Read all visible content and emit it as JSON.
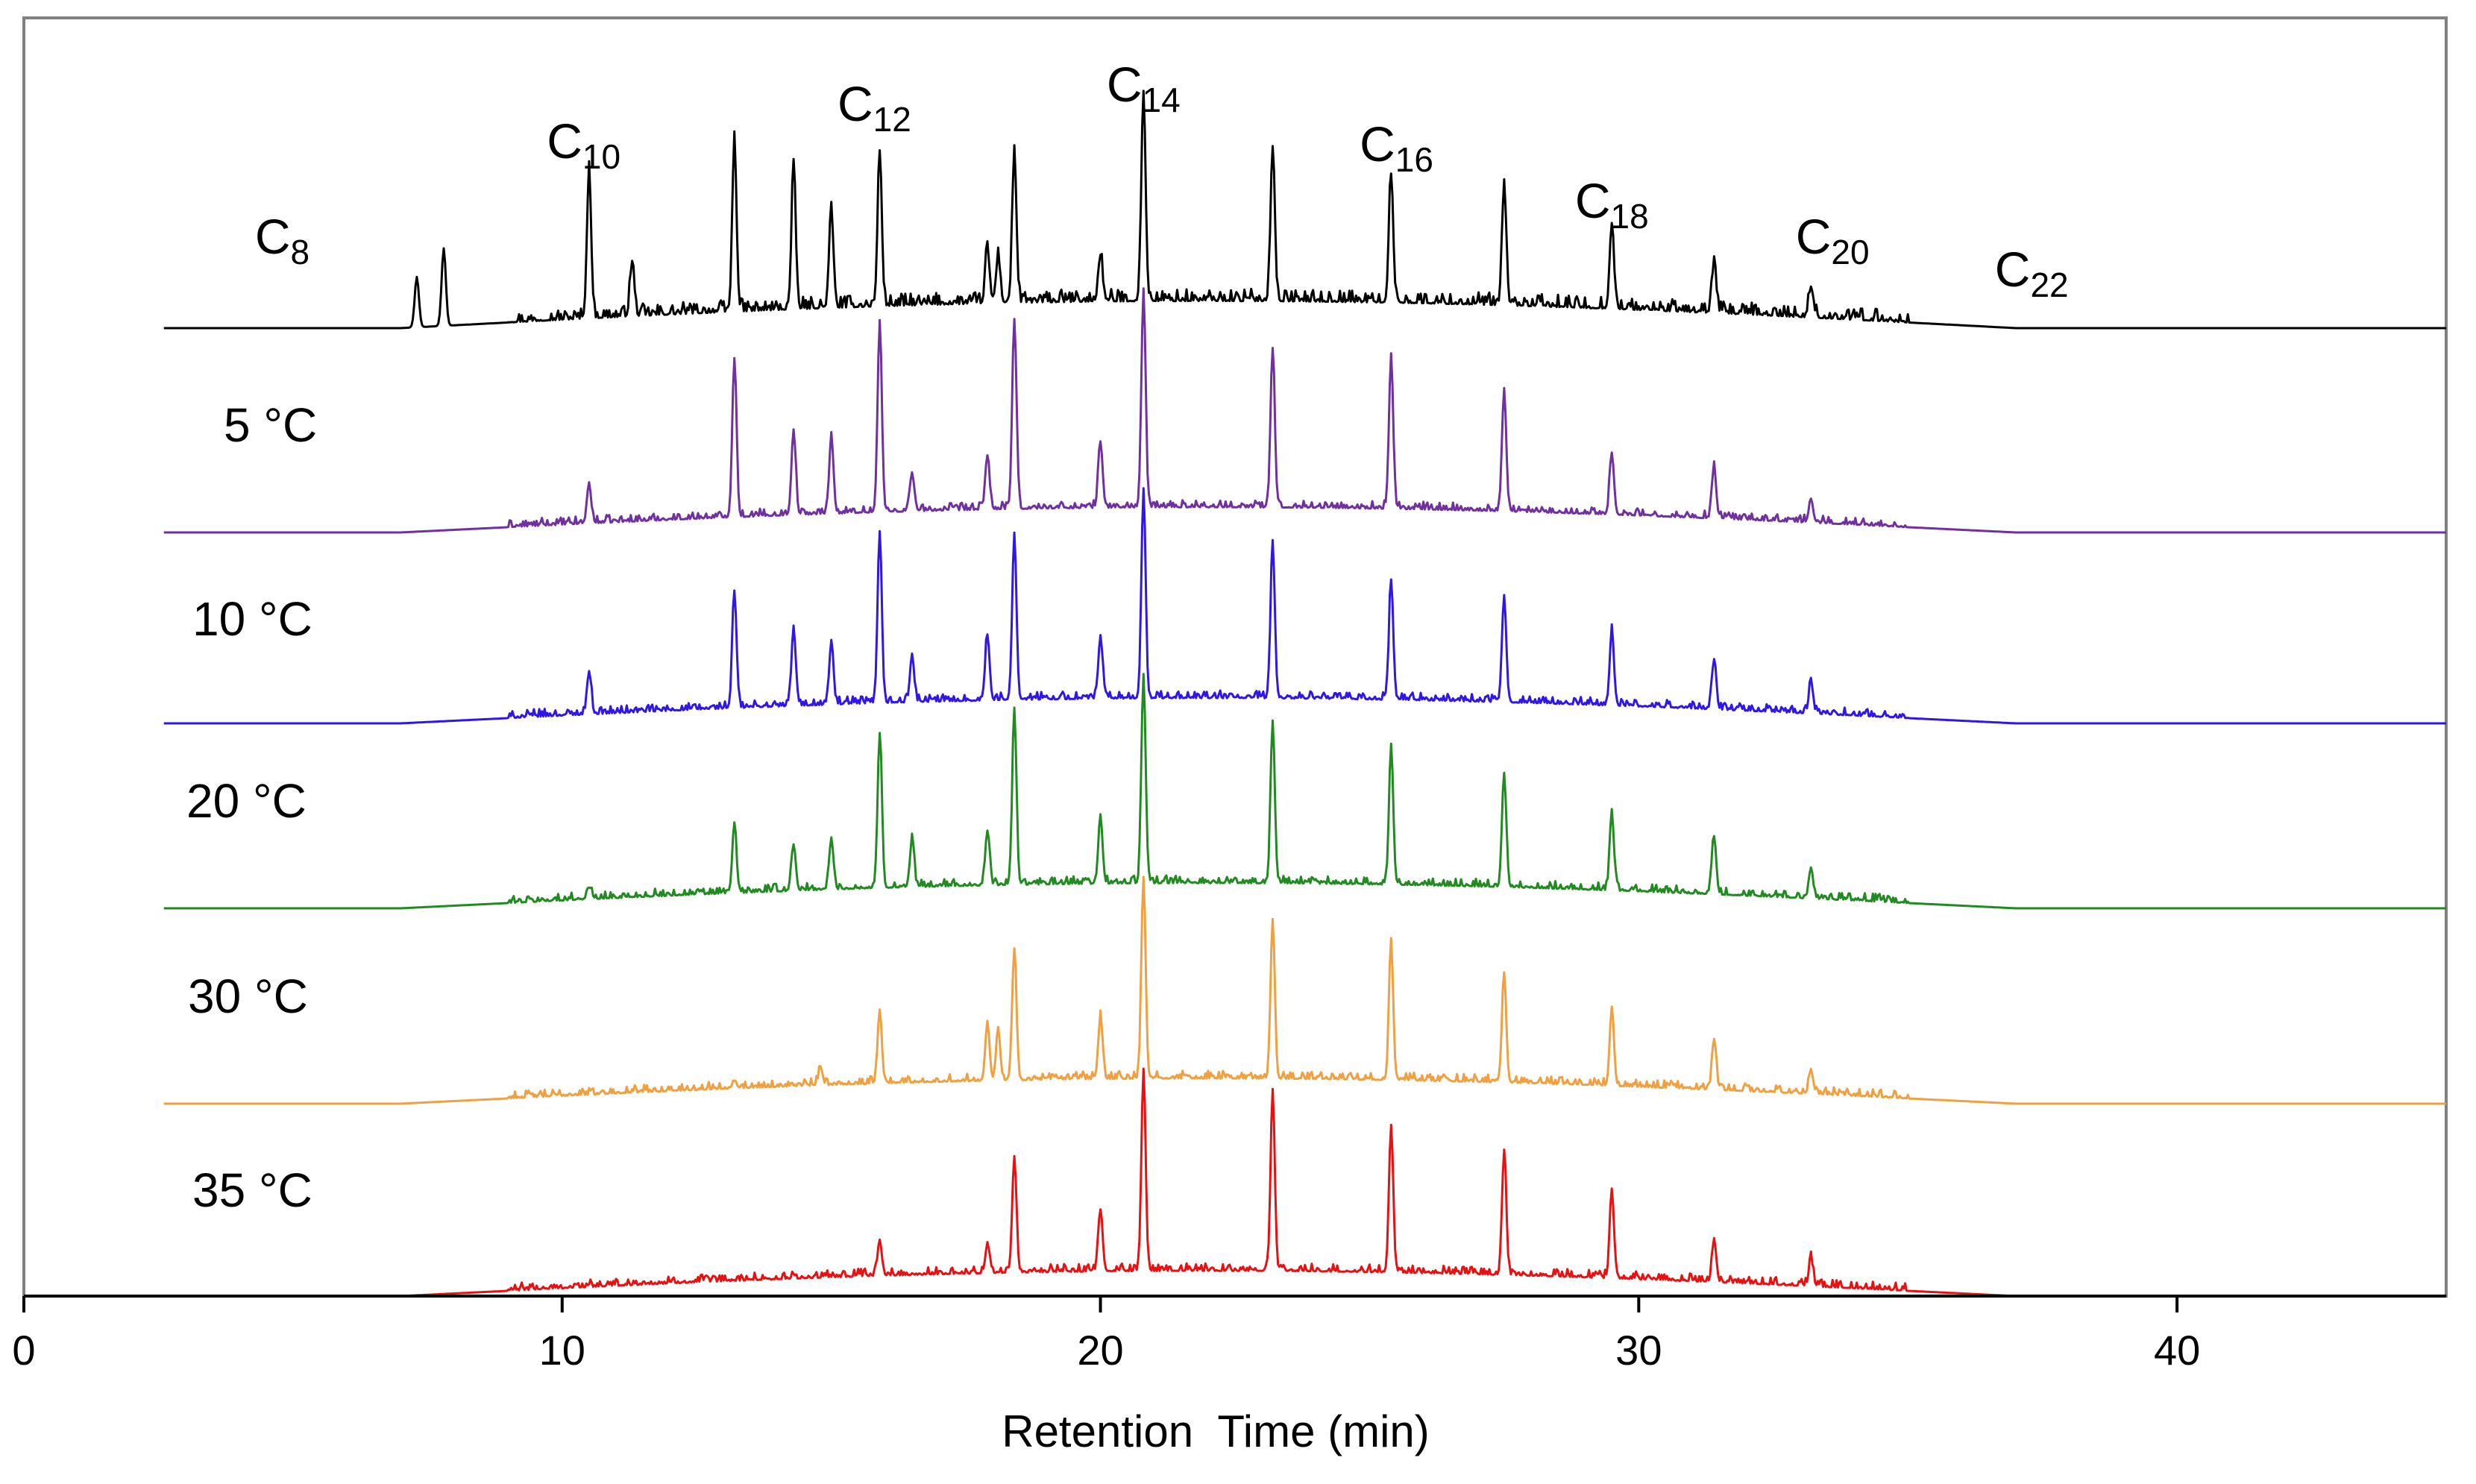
{
  "chart_data": {
    "type": "line",
    "title": "",
    "xlabel": "Retention  Time (min)",
    "ylabel": "",
    "xlim": [
      0,
      45
    ],
    "x_ticks": [
      "0",
      "10",
      "20",
      "30",
      "40"
    ],
    "grid": false,
    "legend": "none",
    "peak_labels": [
      {
        "base": "C",
        "sub": "8",
        "x": 4.8
      },
      {
        "base": "C",
        "sub": "10",
        "x": 10.4
      },
      {
        "base": "C",
        "sub": "12",
        "x": 15.8
      },
      {
        "base": "C",
        "sub": "14",
        "x": 20.8
      },
      {
        "base": "C",
        "sub": "16",
        "x": 25.5
      },
      {
        "base": "C",
        "sub": "18",
        "x": 29.5
      },
      {
        "base": "C",
        "sub": "20",
        "x": 33.6
      },
      {
        "base": "C",
        "sub": "22",
        "x": 37.3
      }
    ],
    "series": [
      {
        "name": "",
        "color": "#000000",
        "x_start": 2.6,
        "x_end": 45,
        "peaks": [
          [
            10.5,
            0.38
          ],
          [
            13.2,
            0.44
          ],
          [
            14.3,
            0.36
          ],
          [
            15.0,
            0.25
          ],
          [
            15.9,
            0.4
          ],
          [
            18.4,
            0.39
          ],
          [
            20.0,
            0.12
          ],
          [
            20.8,
            0.54
          ],
          [
            23.2,
            0.4
          ],
          [
            25.4,
            0.33
          ],
          [
            27.5,
            0.31
          ],
          [
            29.5,
            0.22
          ],
          [
            31.4,
            0.13
          ],
          [
            33.2,
            0.08
          ],
          [
            7.8,
            0.2
          ],
          [
            7.3,
            0.13
          ],
          [
            11.3,
            0.14
          ],
          [
            17.9,
            0.14
          ],
          [
            18.1,
            0.12
          ]
        ]
      },
      {
        "name": "5 °C",
        "color": "#7030A0",
        "x_start": 2.6,
        "x_end": 45,
        "peaks": [
          [
            10.5,
            0.1
          ],
          [
            13.2,
            0.41
          ],
          [
            14.3,
            0.22
          ],
          [
            15.0,
            0.2
          ],
          [
            15.9,
            0.49
          ],
          [
            18.4,
            0.49
          ],
          [
            20.0,
            0.17
          ],
          [
            20.8,
            0.56
          ],
          [
            23.2,
            0.41
          ],
          [
            25.4,
            0.39
          ],
          [
            27.5,
            0.31
          ],
          [
            29.5,
            0.16
          ],
          [
            31.4,
            0.13
          ],
          [
            33.2,
            0.06
          ],
          [
            16.5,
            0.1
          ],
          [
            17.9,
            0.14
          ]
        ]
      },
      {
        "name": "10 °C",
        "color": "#2E17E8",
        "x_start": 2.6,
        "x_end": 45,
        "peaks": [
          [
            10.5,
            0.11
          ],
          [
            13.2,
            0.3
          ],
          [
            14.3,
            0.2
          ],
          [
            15.0,
            0.16
          ],
          [
            15.9,
            0.43
          ],
          [
            18.4,
            0.43
          ],
          [
            20.0,
            0.16
          ],
          [
            20.8,
            0.53
          ],
          [
            23.2,
            0.4
          ],
          [
            25.4,
            0.31
          ],
          [
            27.5,
            0.27
          ],
          [
            29.5,
            0.19
          ],
          [
            31.4,
            0.13
          ],
          [
            33.2,
            0.08
          ],
          [
            16.5,
            0.12
          ],
          [
            17.9,
            0.17
          ]
        ]
      },
      {
        "name": "20 °C",
        "color": "#218B21",
        "x_start": 2.6,
        "x_end": 45,
        "peaks": [
          [
            10.5,
            0.03
          ],
          [
            13.2,
            0.17
          ],
          [
            14.3,
            0.12
          ],
          [
            15.0,
            0.13
          ],
          [
            15.9,
            0.4
          ],
          [
            18.4,
            0.45
          ],
          [
            20.0,
            0.17
          ],
          [
            20.8,
            0.54
          ],
          [
            23.2,
            0.42
          ],
          [
            25.4,
            0.36
          ],
          [
            27.5,
            0.29
          ],
          [
            29.5,
            0.2
          ],
          [
            31.4,
            0.15
          ],
          [
            33.2,
            0.08
          ],
          [
            16.5,
            0.12
          ],
          [
            17.9,
            0.14
          ]
        ]
      },
      {
        "name": "30 °C",
        "color": "#F0A040",
        "x_start": 2.6,
        "x_end": 45,
        "peaks": [
          [
            13.2,
            0.02
          ],
          [
            14.8,
            0.04
          ],
          [
            15.9,
            0.19
          ],
          [
            18.4,
            0.34
          ],
          [
            20.0,
            0.16
          ],
          [
            20.8,
            0.52
          ],
          [
            23.2,
            0.41
          ],
          [
            25.4,
            0.35
          ],
          [
            27.5,
            0.28
          ],
          [
            29.5,
            0.2
          ],
          [
            31.4,
            0.13
          ],
          [
            33.2,
            0.06
          ],
          [
            17.9,
            0.15
          ],
          [
            18.1,
            0.13
          ]
        ]
      },
      {
        "name": "35 °C",
        "color": "#E81010",
        "x_start": 2.6,
        "x_end": 45,
        "peaks": [
          [
            15.9,
            0.09
          ],
          [
            18.4,
            0.3
          ],
          [
            20.0,
            0.16
          ],
          [
            20.8,
            0.52
          ],
          [
            23.2,
            0.46
          ],
          [
            25.4,
            0.38
          ],
          [
            27.5,
            0.32
          ],
          [
            29.5,
            0.23
          ],
          [
            31.4,
            0.11
          ],
          [
            33.2,
            0.07
          ],
          [
            17.9,
            0.07
          ]
        ]
      }
    ]
  }
}
